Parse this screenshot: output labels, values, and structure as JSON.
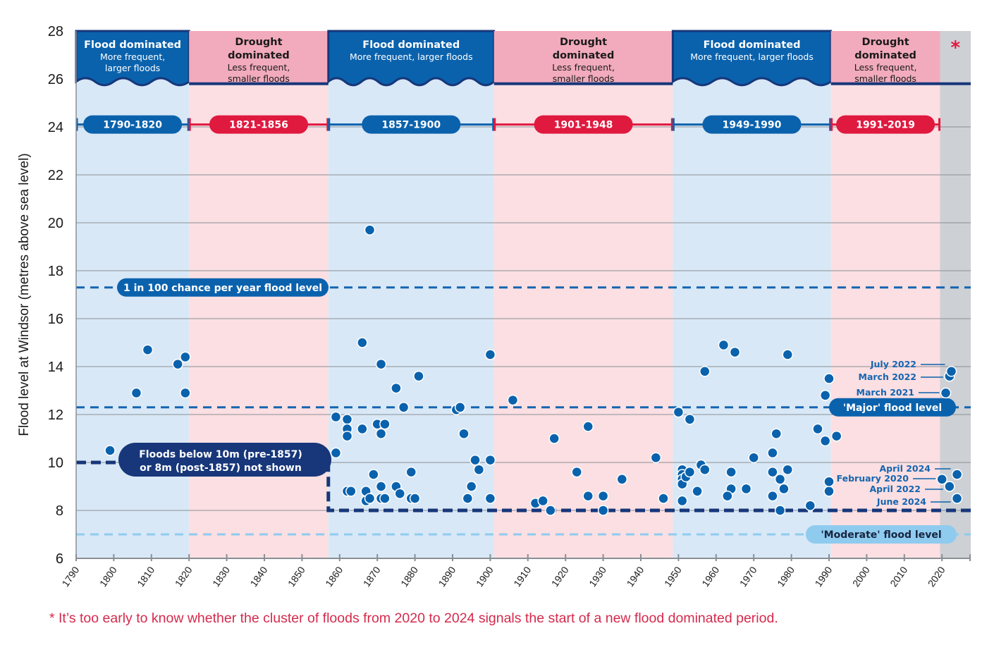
{
  "chart_data": {
    "type": "scatter",
    "title": "",
    "xlabel": "",
    "ylabel": "Flood level at Windsor (metres  above sea level)",
    "xlim": [
      1790,
      2026
    ],
    "ylim": [
      6,
      28
    ],
    "grid": true,
    "x_ticks": [
      "1790",
      "1800",
      "1810",
      "1820",
      "1830",
      "1840",
      "1850",
      "1860",
      "1870",
      "1880",
      "1890",
      "1900",
      "1910",
      "1920",
      "1930",
      "1940",
      "1950",
      "1960",
      "1970",
      "1980",
      "1990",
      "2000",
      "2010",
      "2020"
    ],
    "y_ticks": [
      "6",
      "8",
      "10",
      "12",
      "14",
      "16",
      "18",
      "20",
      "22",
      "24",
      "26",
      "28"
    ],
    "periods": [
      {
        "type": "flood",
        "start": 1790,
        "end": 1820,
        "range_label": "1790-1820",
        "title": "Flood dominated",
        "subtitle": [
          "More frequent,",
          "larger floods"
        ]
      },
      {
        "type": "drought",
        "start": 1820,
        "end": 1857,
        "range_label": "1821-1856",
        "title": "Drought dominated",
        "subtitle": [
          "Less frequent,",
          "smaller floods"
        ]
      },
      {
        "type": "flood",
        "start": 1857,
        "end": 1901,
        "range_label": "1857-1900",
        "title": "Flood dominated",
        "subtitle": [
          "More frequent, larger floods"
        ]
      },
      {
        "type": "drought",
        "start": 1901,
        "end": 1948.5,
        "range_label": "1901-1948",
        "title": "Drought dominated",
        "subtitle": [
          "Less frequent,",
          "smaller floods"
        ]
      },
      {
        "type": "flood",
        "start": 1948.5,
        "end": 1990.5,
        "range_label": "1949-1990",
        "title": "Flood dominated",
        "subtitle": [
          "More frequent, larger floods"
        ]
      },
      {
        "type": "drought",
        "start": 1990.5,
        "end": 2019.5,
        "range_label": "1991-2019",
        "title": "Drought dominated",
        "subtitle": [
          "Less frequent,",
          "smaller floods"
        ]
      },
      {
        "type": "unknown",
        "start": 2019.5,
        "end": 2026,
        "range_label": "",
        "title": "*",
        "subtitle": []
      }
    ],
    "reference_lines": [
      {
        "name": "1 in 100 chance per year flood level",
        "value": 17.3,
        "color": "#1565b0"
      },
      {
        "name": "'Major' flood level",
        "value": 12.3,
        "color": "#1565b0"
      },
      {
        "name": "'Moderate' flood level",
        "value": 7.0,
        "color": "#8fcbef"
      }
    ],
    "threshold_note": "Floods below 10m (pre-1857) or 8m (post-1857) not shown",
    "threshold": [
      {
        "before": 1857,
        "value": 10
      },
      {
        "after": 1857,
        "value": 8
      }
    ],
    "event_labels": [
      {
        "label": "July 2022",
        "x": 2022.5,
        "y": 13.8
      },
      {
        "label": "March 2022",
        "x": 2022,
        "y": 13.6
      },
      {
        "label": "March 2021",
        "x": 2021,
        "y": 12.9
      },
      {
        "label": "April 2024",
        "x": 2024,
        "y": 9.5
      },
      {
        "label": "February 2020",
        "x": 2020,
        "y": 9.3
      },
      {
        "label": "April 2022",
        "x": 2022,
        "y": 9.0
      },
      {
        "label": "June 2024",
        "x": 2024,
        "y": 8.5
      }
    ],
    "points": [
      [
        1799,
        10.5
      ],
      [
        1806,
        12.9
      ],
      [
        1809,
        14.7
      ],
      [
        1817,
        14.1
      ],
      [
        1819,
        14.4
      ],
      [
        1819,
        12.9
      ],
      [
        1859,
        11.9
      ],
      [
        1859,
        10.4
      ],
      [
        1862,
        11.8
      ],
      [
        1862,
        11.4
      ],
      [
        1862,
        11.1
      ],
      [
        1862,
        8.8
      ],
      [
        1863,
        8.8
      ],
      [
        1866,
        15.0
      ],
      [
        1866,
        11.4
      ],
      [
        1868,
        19.7
      ],
      [
        1867,
        8.8
      ],
      [
        1867,
        8.4
      ],
      [
        1868,
        8.5
      ],
      [
        1869,
        9.5
      ],
      [
        1870,
        11.6
      ],
      [
        1871,
        14.1
      ],
      [
        1871,
        11.2
      ],
      [
        1872,
        11.6
      ],
      [
        1871,
        9.0
      ],
      [
        1871,
        8.5
      ],
      [
        1872,
        8.5
      ],
      [
        1875,
        13.1
      ],
      [
        1875,
        9.0
      ],
      [
        1876,
        8.7
      ],
      [
        1877,
        12.3
      ],
      [
        1879,
        8.5
      ],
      [
        1879,
        9.6
      ],
      [
        1880,
        8.5
      ],
      [
        1881,
        13.6
      ],
      [
        1891,
        12.2
      ],
      [
        1892,
        12.3
      ],
      [
        1893,
        11.2
      ],
      [
        1894,
        8.5
      ],
      [
        1895,
        9.0
      ],
      [
        1896,
        10.1
      ],
      [
        1897,
        9.7
      ],
      [
        1900,
        10.1
      ],
      [
        1900,
        14.5
      ],
      [
        1900,
        8.5
      ],
      [
        1906,
        12.6
      ],
      [
        1912,
        8.3
      ],
      [
        1914,
        8.4
      ],
      [
        1916,
        8.0
      ],
      [
        1917,
        11.0
      ],
      [
        1923,
        9.6
      ],
      [
        1926,
        11.5
      ],
      [
        1926,
        8.6
      ],
      [
        1930,
        8.0
      ],
      [
        1930,
        8.6
      ],
      [
        1935,
        9.3
      ],
      [
        1944,
        10.2
      ],
      [
        1946,
        8.5
      ],
      [
        1950,
        12.1
      ],
      [
        1953,
        11.8
      ],
      [
        1951,
        9.7
      ],
      [
        1951,
        9.5
      ],
      [
        1951,
        9.3
      ],
      [
        1951,
        9.1
      ],
      [
        1951,
        8.4
      ],
      [
        1952,
        9.4
      ],
      [
        1953,
        9.6
      ],
      [
        1956,
        9.9
      ],
      [
        1957,
        9.7
      ],
      [
        1955,
        8.8
      ],
      [
        1957,
        13.8
      ],
      [
        1962,
        14.9
      ],
      [
        1965,
        14.6
      ],
      [
        1964,
        9.6
      ],
      [
        1964,
        8.9
      ],
      [
        1963,
        8.6
      ],
      [
        1968,
        8.9
      ],
      [
        1970,
        10.2
      ],
      [
        1976,
        11.2
      ],
      [
        1975,
        10.4
      ],
      [
        1975,
        9.6
      ],
      [
        1977,
        9.3
      ],
      [
        1978,
        8.9
      ],
      [
        1979,
        9.7
      ],
      [
        1975,
        8.6
      ],
      [
        1977,
        8.0
      ],
      [
        1979,
        14.5
      ],
      [
        1985,
        8.2
      ],
      [
        1987,
        11.4
      ],
      [
        1989,
        10.9
      ],
      [
        1990,
        8.8
      ],
      [
        1990,
        9.2
      ],
      [
        1990,
        13.5
      ],
      [
        1989,
        12.8
      ],
      [
        1992,
        11.1
      ],
      [
        2020,
        9.3
      ],
      [
        2021,
        12.9
      ],
      [
        2022,
        13.6
      ],
      [
        2022.5,
        13.8
      ],
      [
        2022,
        9.0
      ],
      [
        2024,
        9.5
      ],
      [
        2024,
        8.5
      ]
    ],
    "annotation_asterisk": "*",
    "footnote": "* It’s too early to know whether the cluster of floods from 2020 to 2024 signals the start of a new flood dominated period."
  },
  "colors": {
    "flood_header": "#0a62ad",
    "drought_header": "#f2abbc",
    "flood_bg": "#d9e8f6",
    "drought_bg": "#fbdfe2",
    "unknown_bg": "#cdd0d4",
    "point": "#0a62ad",
    "navy": "#17377a",
    "red": "#e0193f",
    "light_blue": "#8fcbef",
    "grid": "#8a8f96"
  }
}
